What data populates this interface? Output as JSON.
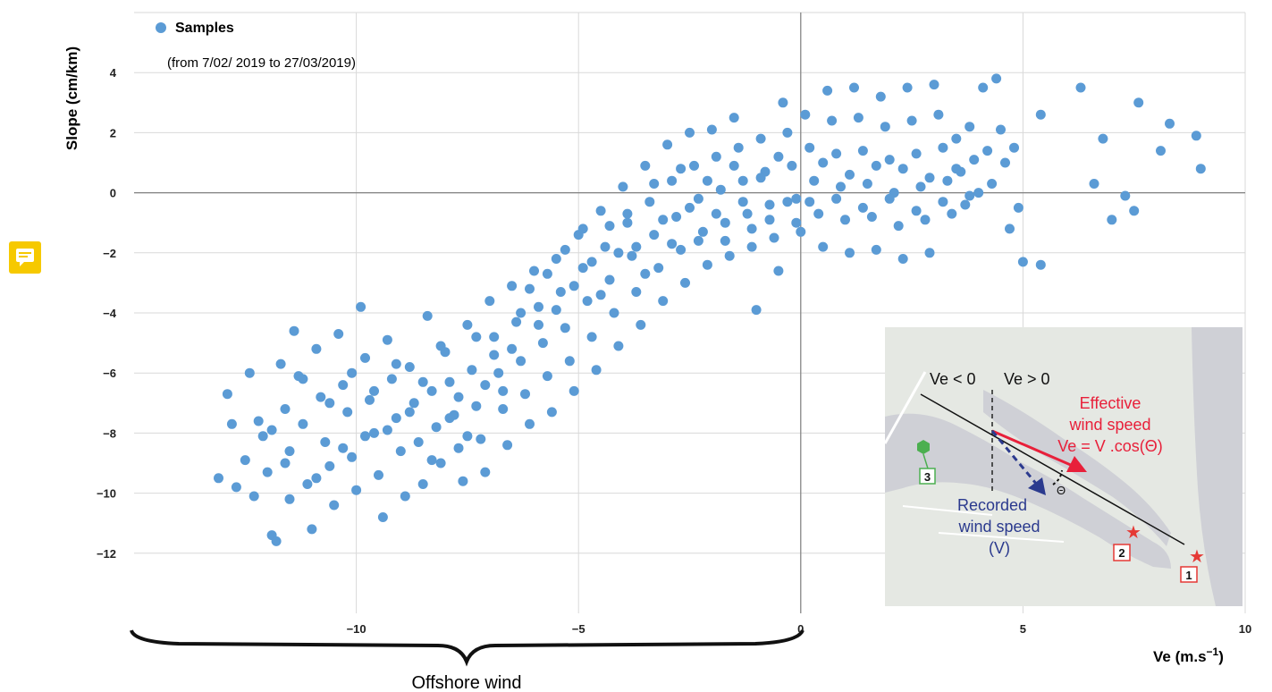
{
  "chart_data": {
    "type": "scatter",
    "legend": {
      "series_name": "Samples",
      "note": "(from 7/02/ 2019 to 27/03/2019)",
      "placement": "top-left"
    },
    "xlabel": "Ve (m.s⁻¹)",
    "ylabel": "Slope (cm/km)",
    "xlim": [
      -15,
      10
    ],
    "ylim": [
      -14,
      6
    ],
    "x_ticks": [
      -10,
      -5,
      0,
      5,
      10
    ],
    "y_ticks": [
      4,
      2,
      0,
      -2,
      -4,
      -6,
      -8,
      -10,
      -12
    ],
    "x_tick_labels": [
      "−10",
      "−5",
      "0",
      "5",
      "10"
    ],
    "y_tick_labels": [
      "4",
      "2",
      "0",
      "−2",
      "−4",
      "−6",
      "−8",
      "−10",
      "−12"
    ],
    "grid": true,
    "marker_color": "#5b9bd5",
    "brace_label": "Offshore wind",
    "series": [
      {
        "name": "Samples",
        "points": [
          [
            -13.1,
            -9.5
          ],
          [
            -12.9,
            -6.7
          ],
          [
            -12.7,
            -9.8
          ],
          [
            -12.5,
            -8.9
          ],
          [
            -12.4,
            -6
          ],
          [
            -12.2,
            -7.6
          ],
          [
            -12.1,
            -8.1
          ],
          [
            -12,
            -9.3
          ],
          [
            -11.9,
            -11.4
          ],
          [
            -11.8,
            -11.6
          ],
          [
            -11.7,
            -5.7
          ],
          [
            -11.6,
            -7.2
          ],
          [
            -11.5,
            -8.6
          ],
          [
            -11.5,
            -10.2
          ],
          [
            -11.4,
            -4.6
          ],
          [
            -11.3,
            -6.1
          ],
          [
            -11.2,
            -7.7
          ],
          [
            -11.1,
            -9.7
          ],
          [
            -11,
            -11.2
          ],
          [
            -10.9,
            -5.2
          ],
          [
            -10.8,
            -6.8
          ],
          [
            -10.7,
            -8.3
          ],
          [
            -10.6,
            -9.1
          ],
          [
            -10.5,
            -10.4
          ],
          [
            -10.4,
            -4.7
          ],
          [
            -10.3,
            -6.4
          ],
          [
            -10.2,
            -7.3
          ],
          [
            -10.1,
            -8.8
          ],
          [
            -10,
            -9.9
          ],
          [
            -9.9,
            -3.8
          ],
          [
            -9.8,
            -5.5
          ],
          [
            -9.7,
            -6.9
          ],
          [
            -9.6,
            -8
          ],
          [
            -9.5,
            -9.4
          ],
          [
            -9.4,
            -10.8
          ],
          [
            -9.3,
            -4.9
          ],
          [
            -9.2,
            -6.2
          ],
          [
            -9.1,
            -7.5
          ],
          [
            -9,
            -8.6
          ],
          [
            -8.9,
            -10.1
          ],
          [
            -8.8,
            -5.8
          ],
          [
            -8.7,
            -7
          ],
          [
            -8.6,
            -8.3
          ],
          [
            -8.5,
            -9.7
          ],
          [
            -8.4,
            -4.1
          ],
          [
            -8.3,
            -6.6
          ],
          [
            -8.2,
            -7.8
          ],
          [
            -8.1,
            -9
          ],
          [
            -8,
            -5.3
          ],
          [
            -7.9,
            -6.3
          ],
          [
            -7.8,
            -7.4
          ],
          [
            -7.7,
            -8.5
          ],
          [
            -7.6,
            -9.6
          ],
          [
            -7.5,
            -4.4
          ],
          [
            -7.4,
            -5.9
          ],
          [
            -7.3,
            -7.1
          ],
          [
            -7.2,
            -8.2
          ],
          [
            -7.1,
            -9.3
          ],
          [
            -7,
            -3.6
          ],
          [
            -6.9,
            -4.8
          ],
          [
            -6.8,
            -6
          ],
          [
            -6.7,
            -7.2
          ],
          [
            -6.6,
            -8.4
          ],
          [
            -6.5,
            -3.1
          ],
          [
            -6.4,
            -4.3
          ],
          [
            -6.3,
            -5.6
          ],
          [
            -6.2,
            -6.7
          ],
          [
            -6.1,
            -7.7
          ],
          [
            -6,
            -2.6
          ],
          [
            -5.9,
            -3.8
          ],
          [
            -5.8,
            -5
          ],
          [
            -5.7,
            -6.1
          ],
          [
            -5.6,
            -7.3
          ],
          [
            -5.5,
            -2.2
          ],
          [
            -5.4,
            -3.3
          ],
          [
            -5.3,
            -4.5
          ],
          [
            -5.2,
            -5.6
          ],
          [
            -5.1,
            -6.6
          ],
          [
            -5,
            -1.4
          ],
          [
            -4.9,
            -2.5
          ],
          [
            -4.8,
            -3.6
          ],
          [
            -4.7,
            -4.8
          ],
          [
            -4.6,
            -5.9
          ],
          [
            -4.5,
            -0.6
          ],
          [
            -4.4,
            -1.8
          ],
          [
            -4.3,
            -2.9
          ],
          [
            -4.2,
            -4
          ],
          [
            -4.1,
            -5.1
          ],
          [
            -4,
            0.2
          ],
          [
            -3.9,
            -1
          ],
          [
            -3.8,
            -2.1
          ],
          [
            -3.7,
            -3.3
          ],
          [
            -3.6,
            -4.4
          ],
          [
            -3.5,
            0.9
          ],
          [
            -3.4,
            -0.3
          ],
          [
            -3.3,
            -1.4
          ],
          [
            -3.2,
            -2.5
          ],
          [
            -3.1,
            -3.6
          ],
          [
            -3,
            1.6
          ],
          [
            -2.9,
            0.4
          ],
          [
            -2.8,
            -0.8
          ],
          [
            -2.7,
            -1.9
          ],
          [
            -2.6,
            -3
          ],
          [
            -2.5,
            2
          ],
          [
            -2.4,
            0.9
          ],
          [
            -2.3,
            -0.2
          ],
          [
            -2.2,
            -1.3
          ],
          [
            -2.1,
            -2.4
          ],
          [
            -2,
            2.1
          ],
          [
            -1.9,
            1.2
          ],
          [
            -1.8,
            0.1
          ],
          [
            -1.7,
            -1
          ],
          [
            -1.6,
            -2.1
          ],
          [
            -1.5,
            2.5
          ],
          [
            -1.4,
            1.5
          ],
          [
            -1.3,
            0.4
          ],
          [
            -1.2,
            -0.7
          ],
          [
            -1.1,
            -1.8
          ],
          [
            -1,
            -3.9
          ],
          [
            -0.9,
            1.8
          ],
          [
            -0.8,
            0.7
          ],
          [
            -0.7,
            -0.4
          ],
          [
            -0.6,
            -1.5
          ],
          [
            -0.5,
            -2.6
          ],
          [
            -0.4,
            3
          ],
          [
            -0.3,
            2
          ],
          [
            -0.2,
            0.9
          ],
          [
            -0.1,
            -0.2
          ],
          [
            0,
            -1.3
          ],
          [
            0.1,
            2.6
          ],
          [
            0.2,
            1.5
          ],
          [
            0.3,
            0.4
          ],
          [
            0.4,
            -0.7
          ],
          [
            0.5,
            -1.8
          ],
          [
            0.6,
            3.4
          ],
          [
            0.7,
            2.4
          ],
          [
            0.8,
            1.3
          ],
          [
            0.9,
            0.2
          ],
          [
            1,
            -0.9
          ],
          [
            1.1,
            -2
          ],
          [
            1.2,
            3.5
          ],
          [
            1.3,
            2.5
          ],
          [
            1.4,
            1.4
          ],
          [
            1.5,
            0.3
          ],
          [
            1.6,
            -0.8
          ],
          [
            1.7,
            -1.9
          ],
          [
            1.8,
            3.2
          ],
          [
            1.9,
            2.2
          ],
          [
            2,
            1.1
          ],
          [
            2.1,
            0
          ],
          [
            2.2,
            -1.1
          ],
          [
            2.3,
            -2.2
          ],
          [
            2.4,
            3.5
          ],
          [
            2.5,
            2.4
          ],
          [
            2.6,
            1.3
          ],
          [
            2.7,
            0.2
          ],
          [
            2.8,
            -0.9
          ],
          [
            2.9,
            -2
          ],
          [
            3,
            3.6
          ],
          [
            3.1,
            2.6
          ],
          [
            3.2,
            1.5
          ],
          [
            3.3,
            0.4
          ],
          [
            3.4,
            -0.7
          ],
          [
            3.5,
            1.8
          ],
          [
            3.6,
            0.7
          ],
          [
            3.7,
            -0.4
          ],
          [
            3.8,
            2.2
          ],
          [
            3.9,
            1.1
          ],
          [
            4,
            0
          ],
          [
            4.1,
            3.5
          ],
          [
            4.2,
            1.4
          ],
          [
            4.3,
            0.3
          ],
          [
            4.4,
            3.8
          ],
          [
            4.5,
            2.1
          ],
          [
            4.6,
            1
          ],
          [
            4.7,
            -1.2
          ],
          [
            4.8,
            1.5
          ],
          [
            4.9,
            -0.5
          ],
          [
            5,
            -2.3
          ],
          [
            5.4,
            2.6
          ],
          [
            5.4,
            -2.4
          ],
          [
            6.3,
            3.5
          ],
          [
            6.6,
            0.3
          ],
          [
            6.8,
            1.8
          ],
          [
            7,
            -0.9
          ],
          [
            7.3,
            -0.1
          ],
          [
            7.5,
            -0.6
          ],
          [
            7.6,
            3
          ],
          [
            8.1,
            1.4
          ],
          [
            8.3,
            2.3
          ],
          [
            8.9,
            1.9
          ],
          [
            9,
            0.8
          ],
          [
            -12.8,
            -7.7
          ],
          [
            -12.3,
            -10.1
          ],
          [
            -11.9,
            -7.9
          ],
          [
            -11.6,
            -9
          ],
          [
            -11.2,
            -6.2
          ],
          [
            -10.9,
            -9.5
          ],
          [
            -10.6,
            -7
          ],
          [
            -10.3,
            -8.5
          ],
          [
            -10.1,
            -6
          ],
          [
            -9.8,
            -8.1
          ],
          [
            -9.6,
            -6.6
          ],
          [
            -9.3,
            -7.9
          ],
          [
            -9.1,
            -5.7
          ],
          [
            -8.8,
            -7.3
          ],
          [
            -8.5,
            -6.3
          ],
          [
            -8.3,
            -8.9
          ],
          [
            -8.1,
            -5.1
          ],
          [
            -7.9,
            -7.5
          ],
          [
            -7.7,
            -6.8
          ],
          [
            -7.5,
            -8.1
          ],
          [
            -7.3,
            -4.8
          ],
          [
            -7.1,
            -6.4
          ],
          [
            -6.9,
            -5.4
          ],
          [
            -6.7,
            -6.6
          ],
          [
            -6.5,
            -5.2
          ],
          [
            -6.3,
            -4
          ],
          [
            -6.1,
            -3.2
          ],
          [
            -5.9,
            -4.4
          ],
          [
            -5.7,
            -2.7
          ],
          [
            -5.5,
            -3.9
          ],
          [
            -5.3,
            -1.9
          ],
          [
            -5.1,
            -3.1
          ],
          [
            -4.9,
            -1.2
          ],
          [
            -4.7,
            -2.3
          ],
          [
            -4.5,
            -3.4
          ],
          [
            -4.3,
            -1.1
          ],
          [
            -4.1,
            -2
          ],
          [
            -3.9,
            -0.7
          ],
          [
            -3.7,
            -1.8
          ],
          [
            -3.5,
            -2.7
          ],
          [
            -3.3,
            0.3
          ],
          [
            -3.1,
            -0.9
          ],
          [
            -2.9,
            -1.7
          ],
          [
            -2.7,
            0.8
          ],
          [
            -2.5,
            -0.5
          ],
          [
            -2.3,
            -1.6
          ],
          [
            -2.1,
            0.4
          ],
          [
            -1.9,
            -0.7
          ],
          [
            -1.7,
            -1.6
          ],
          [
            -1.5,
            0.9
          ],
          [
            -1.3,
            -0.3
          ],
          [
            -1.1,
            -1.2
          ],
          [
            -0.9,
            0.5
          ],
          [
            -0.7,
            -0.9
          ],
          [
            -0.5,
            1.2
          ],
          [
            -0.3,
            -0.3
          ],
          [
            -0.1,
            -1
          ],
          [
            0.2,
            -0.3
          ],
          [
            0.5,
            1
          ],
          [
            0.8,
            -0.2
          ],
          [
            1.1,
            0.6
          ],
          [
            1.4,
            -0.5
          ],
          [
            1.7,
            0.9
          ],
          [
            2,
            -0.2
          ],
          [
            2.3,
            0.8
          ],
          [
            2.6,
            -0.6
          ],
          [
            2.9,
            0.5
          ],
          [
            3.2,
            -0.3
          ],
          [
            3.5,
            0.8
          ],
          [
            3.8,
            -0.1
          ]
        ]
      }
    ],
    "inset": {
      "ve_negative": "Ve < 0",
      "ve_positive": "Ve > 0",
      "effective_line1": "Effective",
      "effective_line2": "wind speed",
      "effective_formula": "Ve = V .cos(Θ)",
      "recorded_line1": "Recorded",
      "recorded_line2": "wind speed",
      "recorded_line3": "(V)",
      "theta": "Θ",
      "markers": [
        "1",
        "2",
        "3"
      ],
      "colors": {
        "effective": "#e8203a",
        "recorded": "#2b3a8e",
        "station3": "#4caf50",
        "station_red": "#e53935"
      }
    }
  }
}
